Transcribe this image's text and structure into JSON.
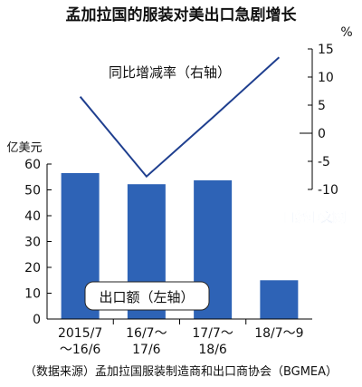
{
  "chart_data": {
    "type": "bar",
    "title": "孟加拉国的服装对美出口急剧增长",
    "categories": [
      [
        "2015/7",
        "～16/6"
      ],
      [
        "16/7～",
        "17/6"
      ],
      [
        "17/7～",
        "18/6"
      ],
      [
        "18/7～9"
      ]
    ],
    "series": [
      {
        "name": "出口额（左轴）",
        "axis": "left",
        "values": [
          56.5,
          52.2,
          53.7,
          15.0
        ]
      },
      {
        "name": "同比增减率（右轴）",
        "axis": "right",
        "type": "line",
        "values": [
          6.5,
          -7.7,
          2.8,
          13.5
        ]
      }
    ],
    "left_axis": {
      "unit": "亿美元",
      "ylim": [
        0,
        60
      ],
      "ticks": [
        "0",
        "10",
        "20",
        "30",
        "40",
        "50",
        "60"
      ]
    },
    "right_axis": {
      "unit": "%",
      "ylim": [
        -10,
        15
      ],
      "ticks": [
        "15",
        "10",
        "5",
        "0",
        "-5",
        "-10"
      ]
    },
    "source": "（数据来源）孟加拉国服装制造商和出口商协会（BGMEA）",
    "watermark": "日经中文网",
    "colors": {
      "bar": "#2e63b6",
      "line": "#1f3f8f",
      "axis": "#000000",
      "watermark": "#3d6fc4"
    }
  }
}
